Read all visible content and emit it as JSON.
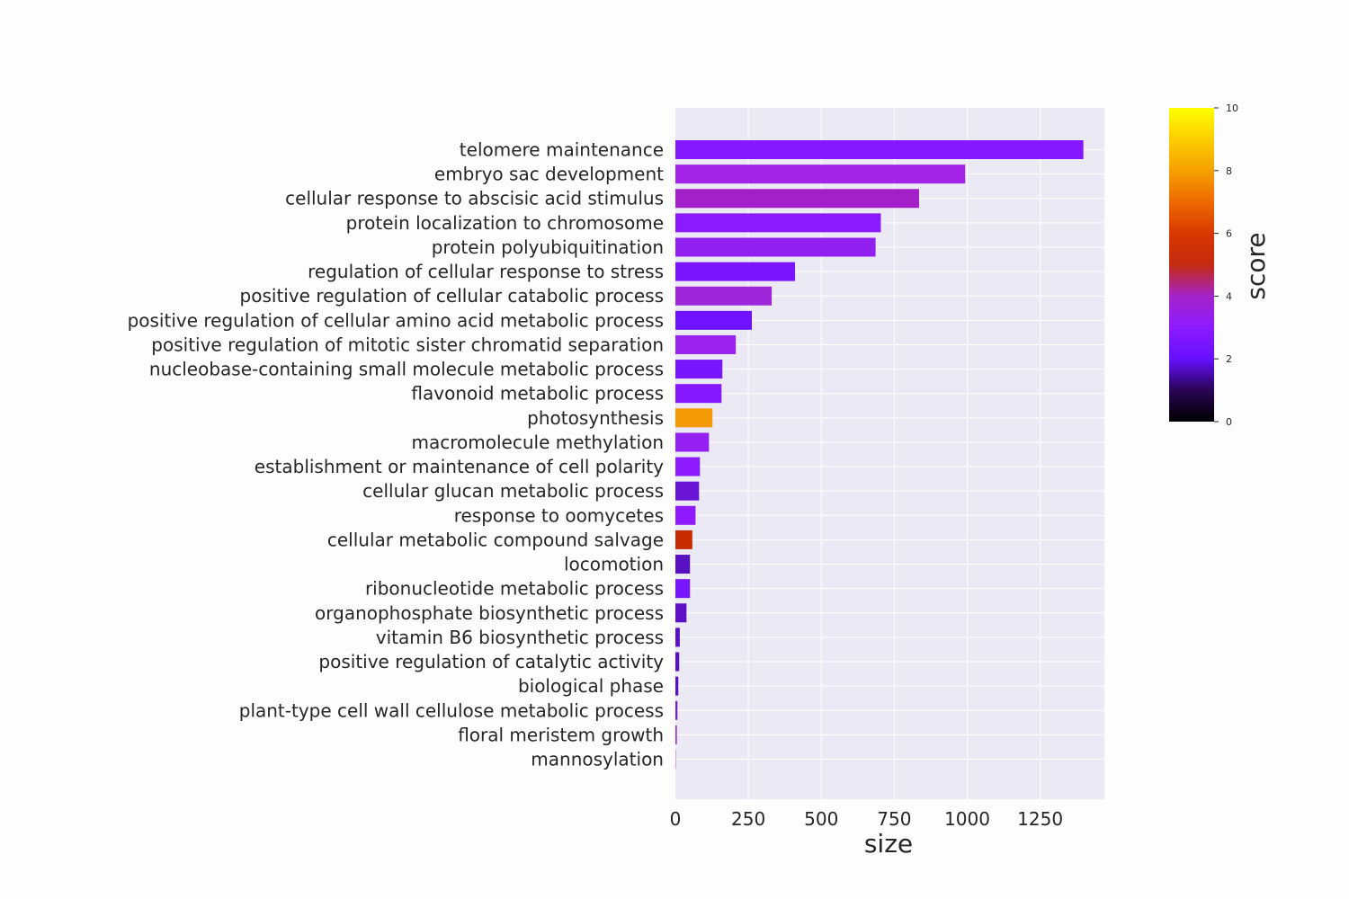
{
  "chart_data": {
    "type": "bar",
    "orientation": "horizontal",
    "xlabel": "size",
    "colorbar_label": "score",
    "xlim": [
      0,
      1470
    ],
    "x_ticks": [
      0,
      250,
      500,
      750,
      1000,
      1250
    ],
    "colorbar_range": [
      0,
      10
    ],
    "colorbar_ticks": [
      0,
      2,
      4,
      6,
      8,
      10
    ],
    "colormap": "gnuplot",
    "grid": true,
    "categories": [
      "telomere maintenance",
      "embryo sac development",
      "cellular response to abscisic acid stimulus",
      "protein localization to chromosome",
      "protein polyubiquitination",
      "regulation of cellular response to stress",
      "positive regulation of cellular catabolic process",
      "positive regulation of cellular amino acid metabolic process",
      "positive regulation of mitotic sister chromatid separation",
      "nucleobase-containing small molecule metabolic process",
      "flavonoid metabolic process",
      "photosynthesis",
      "macromolecule methylation",
      "establishment or maintenance of cell polarity",
      "cellular glucan metabolic process",
      "response to oomycetes",
      "cellular metabolic compound salvage",
      "locomotion",
      "ribonucleotide metabolic process",
      "organophosphate biosynthetic process",
      "vitamin B6 biosynthetic process",
      "positive regulation of catalytic activity",
      "biological phase",
      "plant-type cell wall cellulose metabolic process",
      "floral meristem growth",
      "mannosylation"
    ],
    "values": [
      1398,
      993,
      835,
      704,
      686,
      410,
      330,
      262,
      207,
      161,
      158,
      127,
      115,
      84,
      81,
      69,
      58,
      50,
      50,
      38,
      15,
      13,
      10,
      7,
      5,
      1
    ],
    "scores": [
      2.6,
      3.1,
      3.5,
      2.8,
      2.9,
      2.4,
      3.3,
      2.1,
      3.0,
      2.3,
      2.5,
      8.0,
      3.0,
      2.7,
      1.6,
      2.7,
      5.8,
      1.4,
      2.4,
      1.6,
      1.6,
      1.6,
      1.6,
      2.0,
      3.6,
      2.0
    ],
    "colors": [
      "#8419ff",
      "#a324e6",
      "#a31fc8",
      "#8c1aff",
      "#901ff0",
      "#7b14ff",
      "#9f27d9",
      "#6f12ff",
      "#9a23f0",
      "#7816ff",
      "#8618ff",
      "#f39a05",
      "#931ff0",
      "#8e1bff",
      "#6a14d6",
      "#8f19ff",
      "#c72c00",
      "#5810c0",
      "#7716ff",
      "#5d10c6",
      "#5a10c8",
      "#5a10c8",
      "#5a10c8",
      "#7a20d0",
      "#9f2fc5",
      "#7a20d0"
    ]
  }
}
